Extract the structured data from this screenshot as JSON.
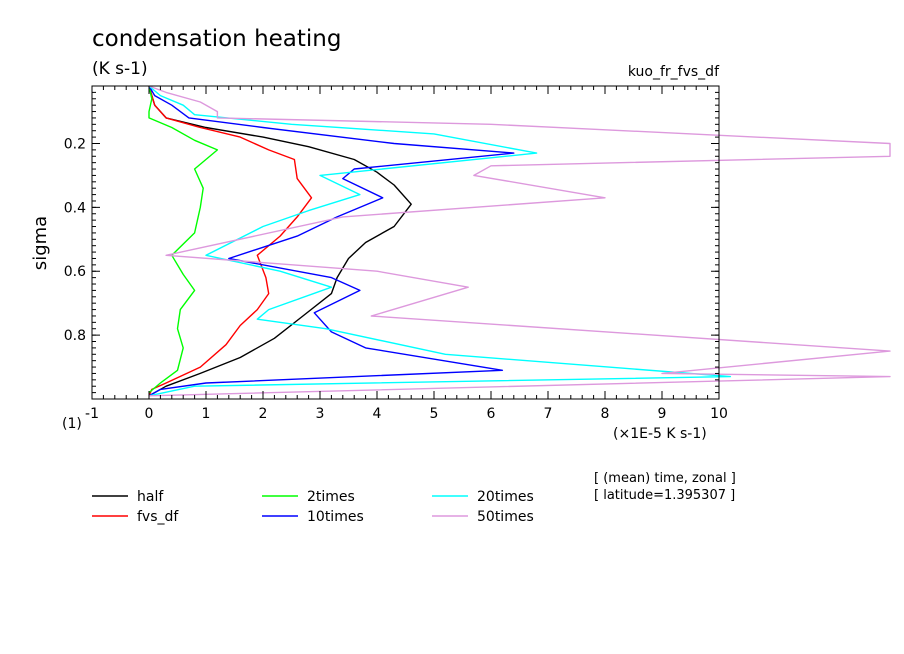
{
  "chart_data": {
    "type": "line",
    "title": "condensation heating",
    "units": "(K s-1)",
    "run_label": "kuo_fr_fvs_df",
    "ylabel": "sigma",
    "xlabel_units": "(×1E-5 K s-1)",
    "corner_label": "(1)",
    "xlim": [
      -1,
      10
    ],
    "ylim": [
      1.0,
      0.02
    ],
    "x_ticks": [
      "-1",
      "0",
      "1",
      "2",
      "3",
      "4",
      "5",
      "6",
      "7",
      "8",
      "9",
      "10"
    ],
    "y_ticks": [
      "0.2",
      "0.4",
      "0.6",
      "0.8"
    ],
    "note_lines": [
      "[ (mean) time, zonal ]",
      "[ latitude=1.395307 ]"
    ],
    "series": [
      {
        "name": "half",
        "color": "#000000",
        "points": [
          [
            0,
            0.02
          ],
          [
            0.05,
            0.05
          ],
          [
            0.1,
            0.08
          ],
          [
            0.3,
            0.12
          ],
          [
            1.0,
            0.15
          ],
          [
            2.0,
            0.18
          ],
          [
            2.8,
            0.21
          ],
          [
            3.6,
            0.25
          ],
          [
            4.0,
            0.29
          ],
          [
            4.3,
            0.33
          ],
          [
            4.6,
            0.39
          ],
          [
            4.3,
            0.46
          ],
          [
            3.8,
            0.51
          ],
          [
            3.5,
            0.56
          ],
          [
            3.3,
            0.62
          ],
          [
            3.2,
            0.67
          ],
          [
            2.7,
            0.74
          ],
          [
            2.2,
            0.81
          ],
          [
            1.6,
            0.87
          ],
          [
            0.9,
            0.92
          ],
          [
            0.3,
            0.96
          ],
          [
            0,
            0.99
          ]
        ]
      },
      {
        "name": "fvs_df",
        "color": "#ff0000",
        "points": [
          [
            0,
            0.02
          ],
          [
            0.05,
            0.05
          ],
          [
            0.1,
            0.08
          ],
          [
            0.3,
            0.12
          ],
          [
            0.9,
            0.15
          ],
          [
            1.6,
            0.18
          ],
          [
            2.1,
            0.22
          ],
          [
            2.55,
            0.25
          ],
          [
            2.6,
            0.31
          ],
          [
            2.85,
            0.37
          ],
          [
            2.6,
            0.43
          ],
          [
            2.3,
            0.49
          ],
          [
            1.9,
            0.55
          ],
          [
            2.05,
            0.62
          ],
          [
            2.1,
            0.67
          ],
          [
            1.9,
            0.72
          ],
          [
            1.6,
            0.77
          ],
          [
            1.35,
            0.83
          ],
          [
            0.9,
            0.9
          ],
          [
            0.3,
            0.95
          ],
          [
            0.05,
            0.97
          ],
          [
            0,
            0.99
          ]
        ]
      },
      {
        "name": "2times",
        "color": "#00ff00",
        "points": [
          [
            0,
            0.02
          ],
          [
            0.05,
            0.06
          ],
          [
            0,
            0.1
          ],
          [
            0,
            0.12
          ],
          [
            0.4,
            0.15
          ],
          [
            0.8,
            0.19
          ],
          [
            1.2,
            0.22
          ],
          [
            0.8,
            0.28
          ],
          [
            0.95,
            0.34
          ],
          [
            0.9,
            0.4
          ],
          [
            0.8,
            0.48
          ],
          [
            0.4,
            0.55
          ],
          [
            0.6,
            0.61
          ],
          [
            0.8,
            0.66
          ],
          [
            0.55,
            0.72
          ],
          [
            0.5,
            0.78
          ],
          [
            0.6,
            0.84
          ],
          [
            0.5,
            0.91
          ],
          [
            0.2,
            0.95
          ],
          [
            0,
            0.98
          ]
        ]
      },
      {
        "name": "10times",
        "color": "#0000ff",
        "points": [
          [
            0,
            0.02
          ],
          [
            0.1,
            0.05
          ],
          [
            0.4,
            0.08
          ],
          [
            0.7,
            0.12
          ],
          [
            2.0,
            0.15
          ],
          [
            4.3,
            0.2
          ],
          [
            6.4,
            0.23
          ],
          [
            3.6,
            0.28
          ],
          [
            3.4,
            0.31
          ],
          [
            4.1,
            0.37
          ],
          [
            3.3,
            0.43
          ],
          [
            2.6,
            0.49
          ],
          [
            1.4,
            0.56
          ],
          [
            3.2,
            0.62
          ],
          [
            3.7,
            0.66
          ],
          [
            2.9,
            0.73
          ],
          [
            3.2,
            0.79
          ],
          [
            3.8,
            0.84
          ],
          [
            6.2,
            0.91
          ],
          [
            1.0,
            0.95
          ],
          [
            0.2,
            0.97
          ],
          [
            0,
            0.99
          ]
        ]
      },
      {
        "name": "20times",
        "color": "#00ffff",
        "points": [
          [
            0,
            0.02
          ],
          [
            0.2,
            0.05
          ],
          [
            0.6,
            0.08
          ],
          [
            0.8,
            0.11
          ],
          [
            2.5,
            0.14
          ],
          [
            5.0,
            0.17
          ],
          [
            6.8,
            0.23
          ],
          [
            3.0,
            0.3
          ],
          [
            3.7,
            0.36
          ],
          [
            2.8,
            0.41
          ],
          [
            2.0,
            0.46
          ],
          [
            1.0,
            0.55
          ],
          [
            2.3,
            0.6
          ],
          [
            3.2,
            0.65
          ],
          [
            2.1,
            0.72
          ],
          [
            1.9,
            0.75
          ],
          [
            3.1,
            0.78
          ],
          [
            5.2,
            0.86
          ],
          [
            10.2,
            0.93
          ],
          [
            0.8,
            0.96
          ],
          [
            0,
            0.99
          ]
        ]
      },
      {
        "name": "50times",
        "color": "#dd99dd",
        "points": [
          [
            0,
            0.02
          ],
          [
            0.3,
            0.04
          ],
          [
            0.9,
            0.07
          ],
          [
            1.2,
            0.1
          ],
          [
            1.2,
            0.12
          ],
          [
            6.0,
            0.14
          ],
          [
            13.0,
            0.2
          ],
          [
            13.0,
            0.24
          ],
          [
            6.0,
            0.27
          ],
          [
            5.7,
            0.3
          ],
          [
            8.0,
            0.37
          ],
          [
            3.4,
            0.43
          ],
          [
            0.3,
            0.55
          ],
          [
            4.0,
            0.6
          ],
          [
            5.6,
            0.65
          ],
          [
            3.9,
            0.74
          ],
          [
            13.0,
            0.85
          ],
          [
            9.0,
            0.92
          ],
          [
            13.0,
            0.93
          ],
          [
            0,
            0.99
          ]
        ]
      }
    ]
  }
}
